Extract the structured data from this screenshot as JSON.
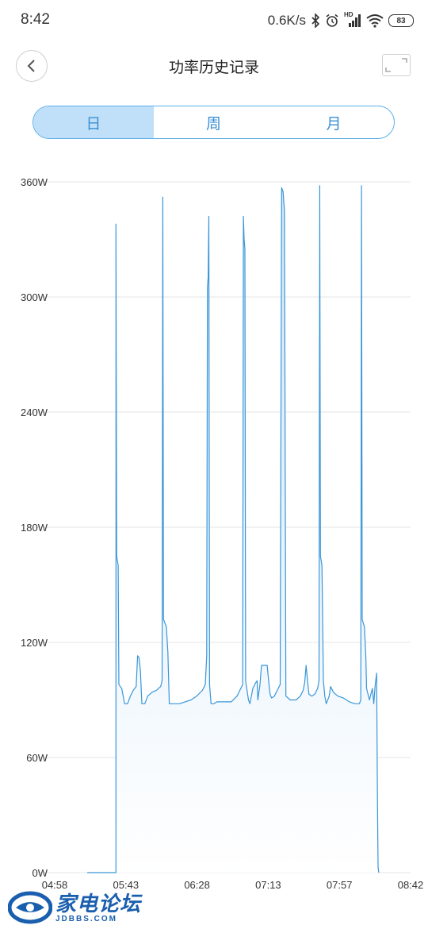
{
  "status_bar": {
    "time": "8:42",
    "net_speed": "0.6K/s",
    "hd_label": "HD",
    "battery": "83",
    "icons": [
      "bluetooth-icon",
      "alarm-icon",
      "signal-icon",
      "wifi-icon",
      "battery-icon"
    ]
  },
  "header": {
    "title": "功率历史记录",
    "back_icon": "chevron-left-icon",
    "expand_icon": "expand-icon"
  },
  "tabs": [
    {
      "label": "日",
      "active": true
    },
    {
      "label": "周",
      "active": false
    },
    {
      "label": "月",
      "active": false
    }
  ],
  "colors": {
    "accent": "#3a96d8",
    "tab_active_bg": "#bfe0f8",
    "grid": "#e6e6e6",
    "area_top": "#cfe6f8",
    "area_bottom": "#ffffff"
  },
  "chart_data": {
    "type": "area",
    "yticks": [
      "0W",
      "60W",
      "120W",
      "180W",
      "240W",
      "300W",
      "360W"
    ],
    "ylim": [
      0,
      360
    ],
    "xticks": [
      "04:58",
      "05:43",
      "06:28",
      "07:13",
      "07:57",
      "08:42"
    ],
    "x_unit": "minutes since 04:58",
    "xlim": [
      0,
      224
    ],
    "grid": true,
    "series": [
      {
        "points": [
          [
            0,
            0
          ],
          [
            20,
            0
          ],
          [
            20,
            100
          ],
          [
            20,
            338
          ],
          [
            20.5,
            165
          ],
          [
            21.5,
            160
          ],
          [
            22,
            98
          ],
          [
            24,
            96
          ],
          [
            26,
            88
          ],
          [
            28,
            88
          ],
          [
            30,
            92
          ],
          [
            32,
            95
          ],
          [
            34,
            97
          ],
          [
            35,
            113
          ],
          [
            36,
            112
          ],
          [
            37,
            105
          ],
          [
            38,
            88
          ],
          [
            40,
            88
          ],
          [
            42,
            92
          ],
          [
            45,
            94
          ],
          [
            48,
            95
          ],
          [
            51,
            97
          ],
          [
            52,
            100
          ],
          [
            52.5,
            352
          ],
          [
            53,
            132
          ],
          [
            55,
            128
          ],
          [
            56,
            115
          ],
          [
            57,
            88
          ],
          [
            60,
            88
          ],
          [
            64,
            88
          ],
          [
            68,
            89
          ],
          [
            72,
            90
          ],
          [
            76,
            92
          ],
          [
            80,
            95
          ],
          [
            82,
            98
          ],
          [
            83,
            113
          ],
          [
            83.5,
            305
          ],
          [
            84,
            310
          ],
          [
            84.5,
            342
          ],
          [
            85,
            98
          ],
          [
            86,
            88
          ],
          [
            88,
            88
          ],
          [
            90,
            89
          ],
          [
            95,
            89
          ],
          [
            100,
            89
          ],
          [
            104,
            92
          ],
          [
            106,
            95
          ],
          [
            108,
            98
          ],
          [
            108.5,
            342
          ],
          [
            109,
            330
          ],
          [
            109.5,
            325
          ],
          [
            110,
            100
          ],
          [
            112,
            90
          ],
          [
            113,
            88
          ],
          [
            115,
            96
          ],
          [
            117,
            99
          ],
          [
            118,
            100
          ],
          [
            118.5,
            90
          ],
          [
            120,
            98
          ],
          [
            121,
            108
          ],
          [
            125,
            108
          ],
          [
            126,
            100
          ],
          [
            127,
            93
          ],
          [
            128,
            91
          ],
          [
            130,
            92
          ],
          [
            132,
            95
          ],
          [
            134,
            98
          ],
          [
            135,
            357
          ],
          [
            136,
            355
          ],
          [
            137,
            345
          ],
          [
            138,
            92
          ],
          [
            141,
            90
          ],
          [
            145,
            90
          ],
          [
            148,
            92
          ],
          [
            150,
            95
          ],
          [
            151,
            99
          ],
          [
            152,
            108
          ],
          [
            153,
            100
          ],
          [
            154,
            93
          ],
          [
            156,
            92
          ],
          [
            158,
            93
          ],
          [
            160,
            96
          ],
          [
            161,
            100
          ],
          [
            161.5,
            358
          ],
          [
            162,
            165
          ],
          [
            163,
            160
          ],
          [
            164,
            100
          ],
          [
            165,
            92
          ],
          [
            166,
            88
          ],
          [
            168,
            92
          ],
          [
            169,
            97
          ],
          [
            171,
            94
          ],
          [
            174,
            92
          ],
          [
            178,
            91
          ],
          [
            182,
            89
          ],
          [
            186,
            88
          ],
          [
            189,
            88
          ],
          [
            190,
            90
          ],
          [
            190.5,
            358
          ],
          [
            191,
            132
          ],
          [
            192.5,
            128
          ],
          [
            193.5,
            112
          ],
          [
            194,
            96
          ],
          [
            196,
            90
          ],
          [
            198,
            96
          ],
          [
            199,
            88
          ],
          [
            200,
            98
          ],
          [
            201,
            104
          ],
          [
            201.5,
            45
          ],
          [
            202,
            3
          ],
          [
            202.5,
            0
          ]
        ]
      }
    ]
  },
  "watermark": {
    "cn": "家电论坛",
    "en": "JDBBS.COM"
  }
}
